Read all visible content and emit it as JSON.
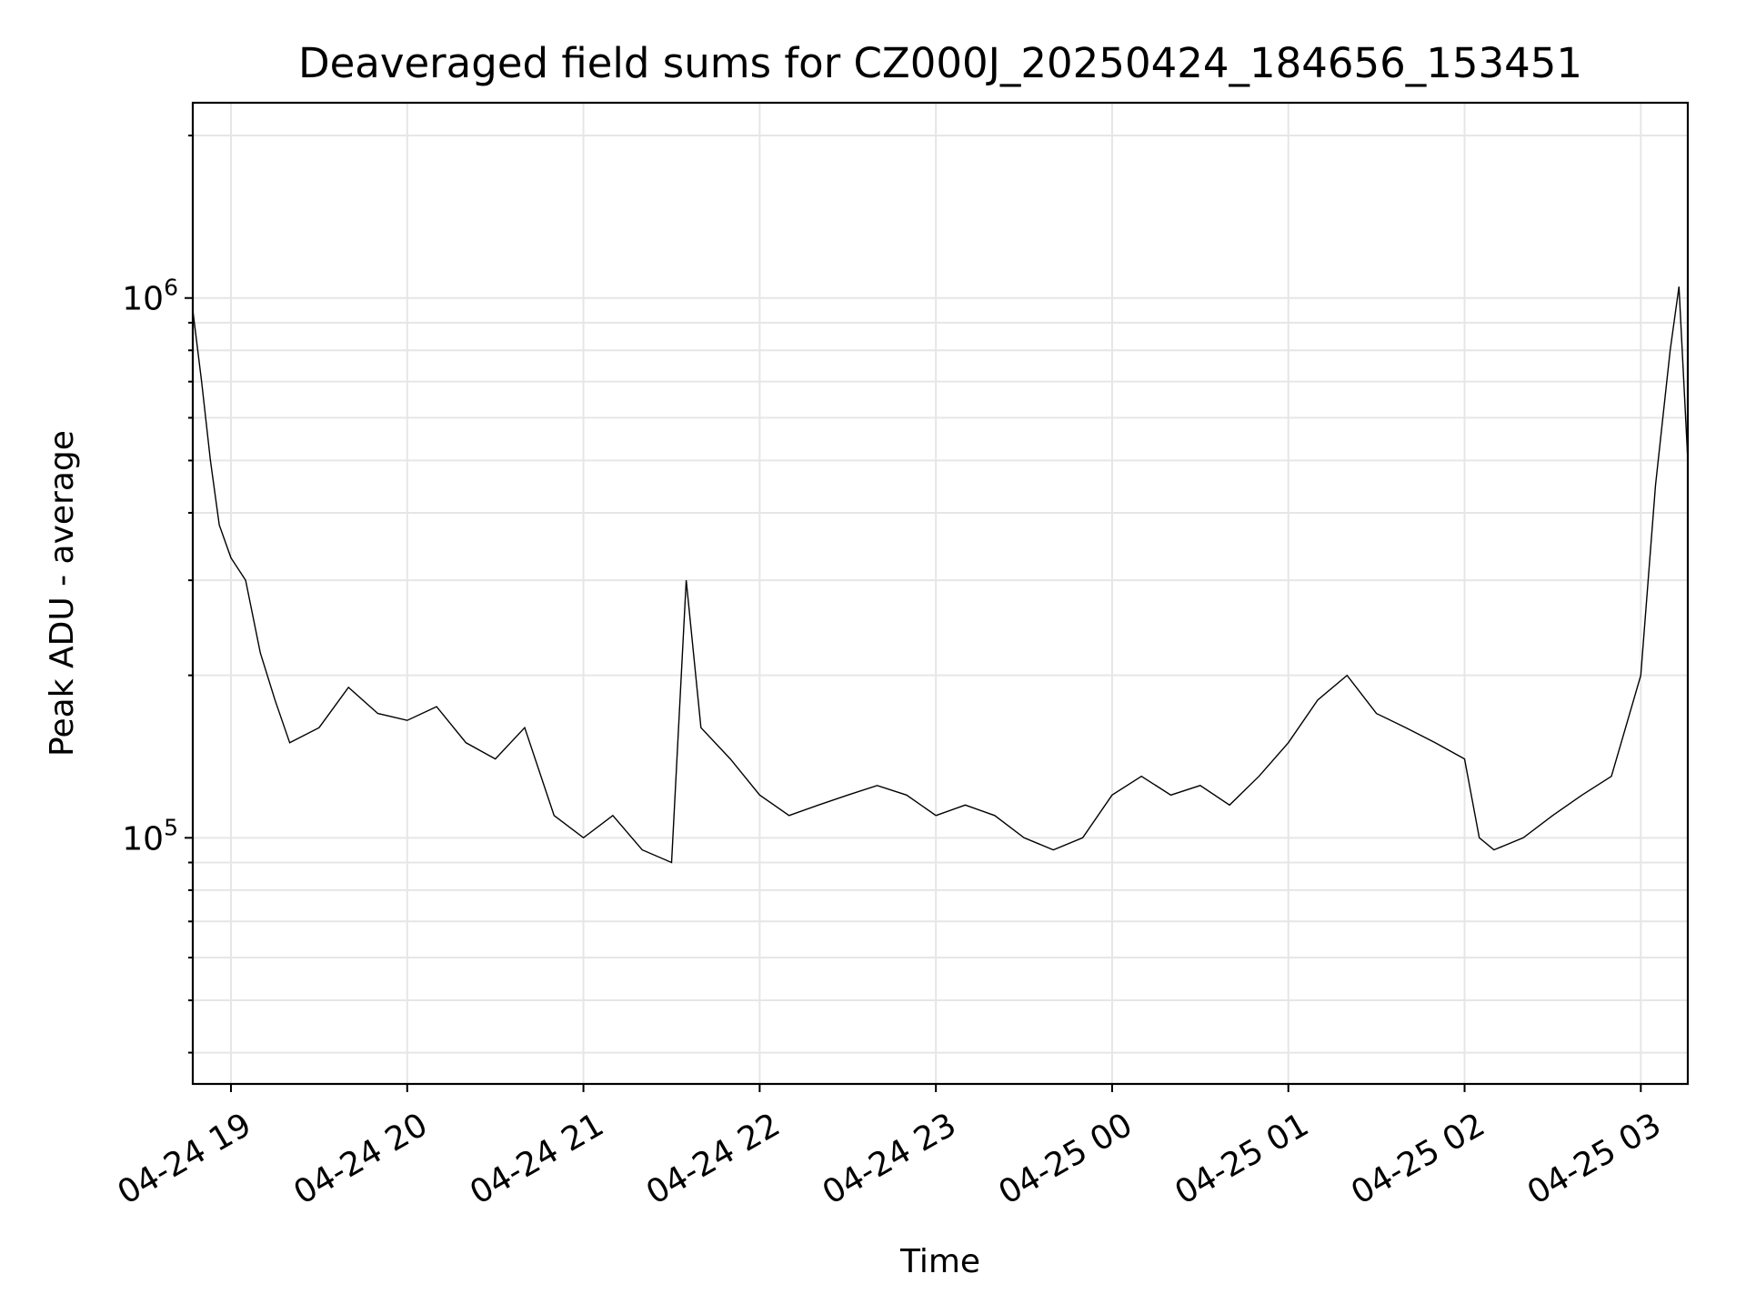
{
  "chart_data": {
    "type": "line",
    "title": "Deaveraged field sums for CZ000J_20250424_184656_153451",
    "xlabel": "Time",
    "ylabel": "Peak ADU - average",
    "yscale": "log",
    "grid": true,
    "legend": "none",
    "line_color": "#000000",
    "grid_color": "#e6e6e6",
    "xlim": [
      "2025-04-24 18:47",
      "2025-04-25 03:16"
    ],
    "ylim": [
      35000,
      2300000
    ],
    "x_ticks": [
      {
        "value": "2025-04-24 19:00",
        "label": "04-24 19"
      },
      {
        "value": "2025-04-24 20:00",
        "label": "04-24 20"
      },
      {
        "value": "2025-04-24 21:00",
        "label": "04-24 21"
      },
      {
        "value": "2025-04-24 22:00",
        "label": "04-24 22"
      },
      {
        "value": "2025-04-24 23:00",
        "label": "04-24 23"
      },
      {
        "value": "2025-04-25 00:00",
        "label": "04-25 00"
      },
      {
        "value": "2025-04-25 01:00",
        "label": "04-25 01"
      },
      {
        "value": "2025-04-25 02:00",
        "label": "04-25 02"
      },
      {
        "value": "2025-04-25 03:00",
        "label": "04-25 03"
      }
    ],
    "y_ticks": [
      {
        "value": 100000,
        "base": "10",
        "exp": "5"
      },
      {
        "value": 1000000,
        "base": "10",
        "exp": "6"
      }
    ],
    "series": [
      {
        "points": [
          [
            "2025-04-24 18:47",
            950000
          ],
          [
            "2025-04-24 18:50",
            700000
          ],
          [
            "2025-04-24 18:53",
            500000
          ],
          [
            "2025-04-24 18:56",
            380000
          ],
          [
            "2025-04-24 19:00",
            330000
          ],
          [
            "2025-04-24 19:05",
            300000
          ],
          [
            "2025-04-24 19:10",
            220000
          ],
          [
            "2025-04-24 19:15",
            180000
          ],
          [
            "2025-04-24 19:20",
            150000
          ],
          [
            "2025-04-24 19:30",
            160000
          ],
          [
            "2025-04-24 19:40",
            190000
          ],
          [
            "2025-04-24 19:50",
            170000
          ],
          [
            "2025-04-24 20:00",
            165000
          ],
          [
            "2025-04-24 20:10",
            175000
          ],
          [
            "2025-04-24 20:20",
            150000
          ],
          [
            "2025-04-24 20:30",
            140000
          ],
          [
            "2025-04-24 20:40",
            160000
          ],
          [
            "2025-04-24 20:50",
            110000
          ],
          [
            "2025-04-24 21:00",
            100000
          ],
          [
            "2025-04-24 21:10",
            110000
          ],
          [
            "2025-04-24 21:20",
            95000
          ],
          [
            "2025-04-24 21:30",
            90000
          ],
          [
            "2025-04-24 21:35",
            300000
          ],
          [
            "2025-04-24 21:40",
            160000
          ],
          [
            "2025-04-24 21:50",
            140000
          ],
          [
            "2025-04-24 22:00",
            120000
          ],
          [
            "2025-04-24 22:10",
            110000
          ],
          [
            "2025-04-24 22:20",
            115000
          ],
          [
            "2025-04-24 22:30",
            120000
          ],
          [
            "2025-04-24 22:40",
            125000
          ],
          [
            "2025-04-24 22:50",
            120000
          ],
          [
            "2025-04-24 23:00",
            110000
          ],
          [
            "2025-04-24 23:10",
            115000
          ],
          [
            "2025-04-24 23:20",
            110000
          ],
          [
            "2025-04-24 23:30",
            100000
          ],
          [
            "2025-04-24 23:40",
            95000
          ],
          [
            "2025-04-24 23:50",
            100000
          ],
          [
            "2025-04-25 00:00",
            120000
          ],
          [
            "2025-04-25 00:10",
            130000
          ],
          [
            "2025-04-25 00:20",
            120000
          ],
          [
            "2025-04-25 00:30",
            125000
          ],
          [
            "2025-04-25 00:40",
            115000
          ],
          [
            "2025-04-25 00:50",
            130000
          ],
          [
            "2025-04-25 01:00",
            150000
          ],
          [
            "2025-04-25 01:10",
            180000
          ],
          [
            "2025-04-25 01:20",
            200000
          ],
          [
            "2025-04-25 01:30",
            170000
          ],
          [
            "2025-04-25 01:40",
            160000
          ],
          [
            "2025-04-25 01:50",
            150000
          ],
          [
            "2025-04-25 02:00",
            140000
          ],
          [
            "2025-04-25 02:05",
            100000
          ],
          [
            "2025-04-25 02:10",
            95000
          ],
          [
            "2025-04-25 02:20",
            100000
          ],
          [
            "2025-04-25 02:30",
            110000
          ],
          [
            "2025-04-25 02:40",
            120000
          ],
          [
            "2025-04-25 02:50",
            130000
          ],
          [
            "2025-04-25 03:00",
            200000
          ],
          [
            "2025-04-25 03:05",
            450000
          ],
          [
            "2025-04-25 03:10",
            800000
          ],
          [
            "2025-04-25 03:13",
            1050000
          ],
          [
            "2025-04-25 03:16",
            500000
          ]
        ]
      }
    ]
  }
}
